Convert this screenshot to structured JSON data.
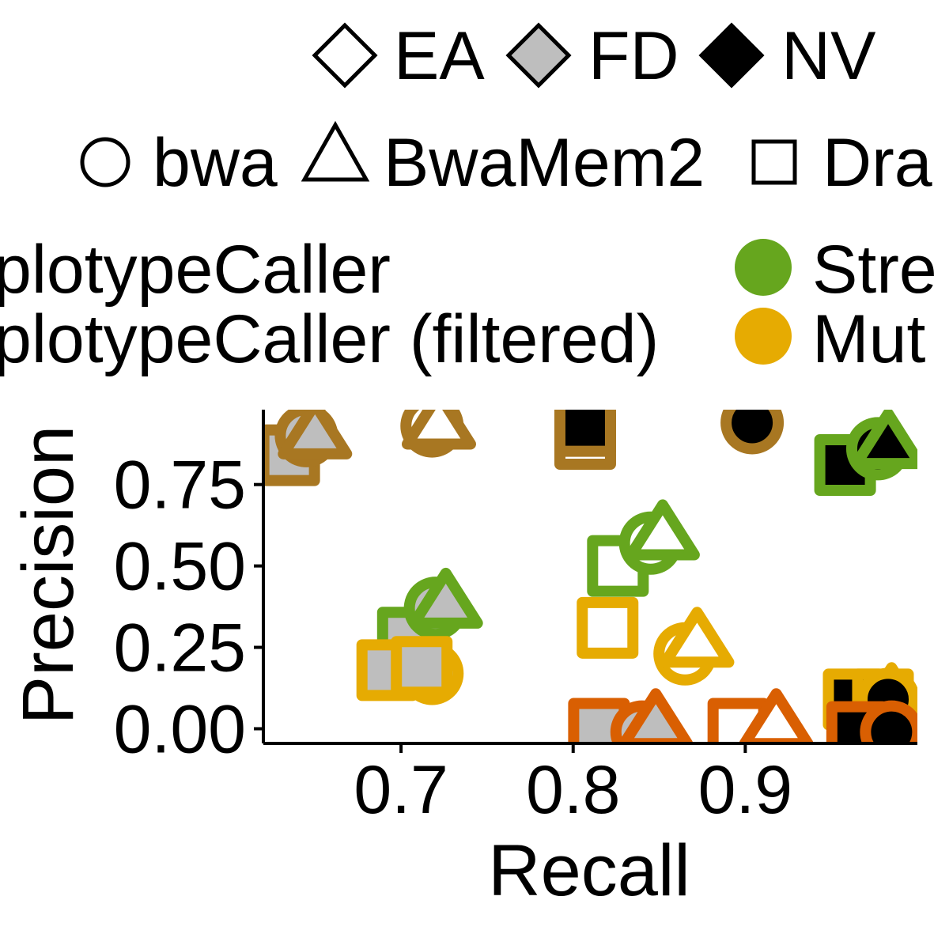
{
  "chart_data": {
    "type": "scatter",
    "xlabel": "Recall",
    "ylabel": "Precision",
    "xlim": [
      0.62,
      1.0
    ],
    "ylim": [
      -0.045,
      0.98
    ],
    "x_ticks": [
      0.7,
      0.8,
      0.9
    ],
    "x_tick_labels": [
      "0.7",
      "0.8",
      "0.9"
    ],
    "y_ticks": [
      0.0,
      0.25,
      0.5,
      0.75
    ],
    "y_tick_labels": [
      "0.00",
      "0.25",
      "0.50",
      "0.75"
    ],
    "grid": false,
    "legend_position": "top",
    "legend": {
      "fill_entries": [
        {
          "label": "EA",
          "fill": "#FFFFFF"
        },
        {
          "label": "FD",
          "fill": "#BEBEBE"
        },
        {
          "label": "NV",
          "fill": "#000000"
        }
      ],
      "shape_entries": [
        {
          "label": "bwa",
          "shape": "circle"
        },
        {
          "label": "BwaMem2",
          "shape": "triangle"
        },
        {
          "label": "Dra",
          "shape": "square"
        }
      ],
      "color_entries_left": [
        {
          "label": "plotypeCaller",
          "color": "#A87722"
        },
        {
          "label": "plotypeCaller (filtered)",
          "color": "#A87722"
        }
      ],
      "color_entries_right": [
        {
          "label": "Stre",
          "color": "#66A61E"
        },
        {
          "label": "Mut",
          "color": "#E6AB02"
        }
      ]
    },
    "colors": {
      "brown": "#A87722",
      "green": "#66A61E",
      "gold": "#E6AB02",
      "orange": "#D95F02"
    },
    "series": [
      {
        "color": "brown",
        "points": [
          {
            "x": 0.635,
            "y": 0.84,
            "shape": "square",
            "fill": "#BEBEBE"
          },
          {
            "x": 0.645,
            "y": 0.9,
            "shape": "circle",
            "fill": "#BEBEBE"
          },
          {
            "x": 0.65,
            "y": 0.91,
            "shape": "triangle",
            "fill": "#BEBEBE"
          },
          {
            "x": 0.718,
            "y": 0.93,
            "shape": "circle",
            "fill": "#FFFFFF"
          },
          {
            "x": 0.722,
            "y": 0.94,
            "shape": "triangle",
            "fill": "#FFFFFF"
          },
          {
            "x": 0.807,
            "y": 0.89,
            "shape": "square",
            "fill": "#FFFFFF"
          },
          {
            "x": 0.807,
            "y": 0.93,
            "shape": "square",
            "fill": "#000000"
          },
          {
            "x": 0.904,
            "y": 0.94,
            "shape": "circle",
            "fill": "#000000"
          }
        ]
      },
      {
        "color": "green",
        "points": [
          {
            "x": 0.704,
            "y": 0.28,
            "shape": "square",
            "fill": "#BEBEBE"
          },
          {
            "x": 0.72,
            "y": 0.37,
            "shape": "circle",
            "fill": "#BEBEBE"
          },
          {
            "x": 0.726,
            "y": 0.39,
            "shape": "triangle",
            "fill": "#BEBEBE"
          },
          {
            "x": 0.826,
            "y": 0.5,
            "shape": "square",
            "fill": "#FFFFFF"
          },
          {
            "x": 0.845,
            "y": 0.57,
            "shape": "circle",
            "fill": "#FFFFFF"
          },
          {
            "x": 0.852,
            "y": 0.6,
            "shape": "triangle",
            "fill": "#FFFFFF"
          },
          {
            "x": 0.958,
            "y": 0.81,
            "shape": "square",
            "fill": "#000000"
          },
          {
            "x": 0.977,
            "y": 0.86,
            "shape": "circle",
            "fill": "#000000"
          },
          {
            "x": 0.983,
            "y": 0.88,
            "shape": "triangle",
            "fill": "#000000"
          }
        ]
      },
      {
        "color": "gold",
        "points": [
          {
            "x": 0.692,
            "y": 0.18,
            "shape": "square",
            "fill": "#BEBEBE"
          },
          {
            "x": 0.718,
            "y": 0.17,
            "shape": "circle",
            "fill": "#BEBEBE"
          },
          {
            "x": 0.712,
            "y": 0.19,
            "shape": "square",
            "fill": "#BEBEBE"
          },
          {
            "x": 0.82,
            "y": 0.31,
            "shape": "square",
            "fill": "#FFFFFF"
          },
          {
            "x": 0.865,
            "y": 0.23,
            "shape": "circle",
            "fill": "#FFFFFF"
          },
          {
            "x": 0.872,
            "y": 0.27,
            "shape": "triangle",
            "fill": "#FFFFFF"
          },
          {
            "x": 0.963,
            "y": 0.09,
            "shape": "square",
            "fill": "#000000"
          },
          {
            "x": 0.985,
            "y": 0.1,
            "shape": "triangle",
            "fill": "#000000"
          },
          {
            "x": 0.98,
            "y": 0.09,
            "shape": "square",
            "fill": "#000000"
          },
          {
            "x": 0.983,
            "y": 0.09,
            "shape": "circle",
            "fill": "#000000"
          }
        ]
      },
      {
        "color": "orange",
        "points": [
          {
            "x": 0.815,
            "y": 0.0,
            "shape": "square",
            "fill": "#BEBEBE"
          },
          {
            "x": 0.84,
            "y": -0.01,
            "shape": "circle",
            "fill": "#BEBEBE"
          },
          {
            "x": 0.848,
            "y": 0.02,
            "shape": "triangle",
            "fill": "#BEBEBE"
          },
          {
            "x": 0.896,
            "y": 0.0,
            "shape": "square",
            "fill": "#FFFFFF"
          },
          {
            "x": 0.918,
            "y": 0.02,
            "shape": "triangle",
            "fill": "#FFFFFF"
          },
          {
            "x": 0.965,
            "y": -0.01,
            "shape": "square",
            "fill": "#000000"
          },
          {
            "x": 0.985,
            "y": -0.01,
            "shape": "circle",
            "fill": "#000000"
          }
        ]
      }
    ]
  }
}
